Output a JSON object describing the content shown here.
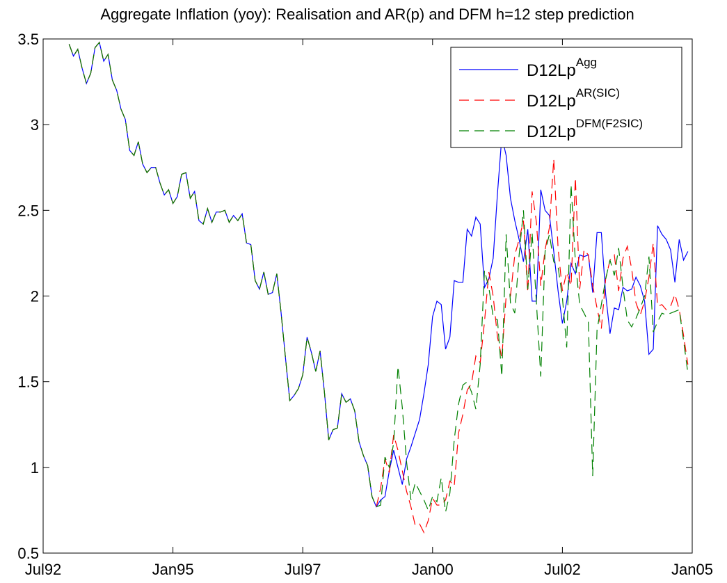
{
  "chart_data": {
    "type": "line",
    "title": "Aggregate Inflation (yoy): Realisation and AR(p) and DFM h=12 step prediction",
    "x": [
      "Jan93",
      "Feb93",
      "Mar93",
      "Apr93",
      "May93",
      "Jun93",
      "Jul93",
      "Aug93",
      "Sep93",
      "Oct93",
      "Nov93",
      "Dec93",
      "Jan94",
      "Feb94",
      "Mar94",
      "Apr94",
      "May94",
      "Jun94",
      "Jul94",
      "Aug94",
      "Sep94",
      "Oct94",
      "Nov94",
      "Dec94",
      "Jan95",
      "Feb95",
      "Mar95",
      "Apr95",
      "May95",
      "Jun95",
      "Jul95",
      "Aug95",
      "Sep95",
      "Oct95",
      "Nov95",
      "Dec95",
      "Jan96",
      "Feb96",
      "Mar96",
      "Apr96",
      "May96",
      "Jun96",
      "Jul96",
      "Aug96",
      "Sep96",
      "Oct96",
      "Nov96",
      "Dec96",
      "Jan97",
      "Feb97",
      "Mar97",
      "Apr97",
      "May97",
      "Jun97",
      "Jul97",
      "Aug97",
      "Sep97",
      "Oct97",
      "Nov97",
      "Dec97",
      "Jan98",
      "Feb98",
      "Mar98",
      "Apr98",
      "May98",
      "Jun98",
      "Jul98",
      "Aug98",
      "Sep98",
      "Oct98",
      "Nov98",
      "Dec98",
      "Jan99",
      "Feb99",
      "Mar99",
      "Apr99",
      "May99",
      "Jun99",
      "Jul99",
      "Aug99",
      "Sep99",
      "Oct99",
      "Nov99",
      "Dec99",
      "Jan00",
      "Feb00",
      "Mar00",
      "Apr00",
      "May00",
      "Jun00",
      "Jul00",
      "Aug00",
      "Sep00",
      "Oct00",
      "Nov00",
      "Dec00",
      "Jan01",
      "Feb01",
      "Mar01",
      "Apr01",
      "May01",
      "Jun01",
      "Jul01",
      "Aug01",
      "Sep01",
      "Oct01",
      "Nov01",
      "Dec01",
      "Jan02",
      "Feb02",
      "Mar02",
      "Apr02",
      "May02",
      "Jun02",
      "Jul02",
      "Aug02",
      "Sep02",
      "Oct02",
      "Nov02",
      "Dec02",
      "Jan03",
      "Feb03",
      "Mar03",
      "Apr03",
      "May03",
      "Jun03",
      "Jul03",
      "Aug03",
      "Sep03",
      "Oct03",
      "Nov03",
      "Dec03",
      "Jan04",
      "Feb04",
      "Mar04",
      "Apr04",
      "May04",
      "Jun04",
      "Jul04",
      "Aug04",
      "Sep04",
      "Oct04",
      "Nov04",
      "Dec04"
    ],
    "series": [
      {
        "name": "D12Lp",
        "superscript": "Agg",
        "color": "#0000ff",
        "dash": "solid",
        "values": [
          3.47,
          3.4,
          3.44,
          3.33,
          3.24,
          3.3,
          3.45,
          3.48,
          3.37,
          3.41,
          3.26,
          3.2,
          3.09,
          3.03,
          2.85,
          2.82,
          2.9,
          2.77,
          2.72,
          2.75,
          2.75,
          2.66,
          2.59,
          2.62,
          2.54,
          2.58,
          2.71,
          2.72,
          2.57,
          2.61,
          2.44,
          2.42,
          2.51,
          2.43,
          2.49,
          2.49,
          2.5,
          2.43,
          2.47,
          2.44,
          2.48,
          2.31,
          2.3,
          2.09,
          2.04,
          2.14,
          2.01,
          2.02,
          2.13,
          1.9,
          1.64,
          1.39,
          1.42,
          1.46,
          1.54,
          1.76,
          1.67,
          1.56,
          1.68,
          1.44,
          1.16,
          1.22,
          1.23,
          1.43,
          1.38,
          1.4,
          1.33,
          1.15,
          1.07,
          1.01,
          0.83,
          0.77,
          0.81,
          0.83,
          0.98,
          1.1,
          1.0,
          0.9,
          1.05,
          1.12,
          1.2,
          1.28,
          1.43,
          1.6,
          1.88,
          1.97,
          1.95,
          1.69,
          1.76,
          2.09,
          2.08,
          2.08,
          2.39,
          2.35,
          2.46,
          2.42,
          2.05,
          2.1,
          2.22,
          2.6,
          2.93,
          2.82,
          2.57,
          2.44,
          2.33,
          2.2,
          2.39,
          1.97,
          1.97,
          2.62,
          2.5,
          2.47,
          2.26,
          2.03,
          1.84,
          1.97,
          2.19,
          2.13,
          2.24,
          2.23,
          2.24,
          2.02,
          2.37,
          2.37,
          2.01,
          1.78,
          1.93,
          1.92,
          2.05,
          2.03,
          2.04,
          2.11,
          2.06,
          1.97,
          1.66,
          1.69,
          2.41,
          2.36,
          2.33,
          2.27,
          2.08,
          2.33,
          2.21,
          2.26
        ]
      },
      {
        "name": "D12Lp",
        "superscript": "AR(SIC)",
        "color": "#ff0000",
        "dash": "dashed",
        "values": [
          3.47,
          3.4,
          3.44,
          3.33,
          3.24,
          3.3,
          3.45,
          3.48,
          3.37,
          3.41,
          3.26,
          3.2,
          3.09,
          3.03,
          2.85,
          2.82,
          2.9,
          2.77,
          2.72,
          2.75,
          2.75,
          2.66,
          2.59,
          2.62,
          2.54,
          2.58,
          2.71,
          2.72,
          2.57,
          2.61,
          2.44,
          2.42,
          2.51,
          2.43,
          2.49,
          2.49,
          2.5,
          2.43,
          2.47,
          2.44,
          2.48,
          2.31,
          2.3,
          2.09,
          2.04,
          2.14,
          2.01,
          2.02,
          2.13,
          1.9,
          1.64,
          1.39,
          1.42,
          1.46,
          1.54,
          1.76,
          1.67,
          1.56,
          1.68,
          1.44,
          1.16,
          1.22,
          1.23,
          1.43,
          1.38,
          1.4,
          1.33,
          1.15,
          1.07,
          1.01,
          0.83,
          0.77,
          0.88,
          1.05,
          0.97,
          1.19,
          1.1,
          0.98,
          0.86,
          0.77,
          0.66,
          0.67,
          0.62,
          0.69,
          0.82,
          0.78,
          0.78,
          0.81,
          0.92,
          0.89,
          1.2,
          1.31,
          1.45,
          1.49,
          1.65,
          1.61,
          1.85,
          2.14,
          2.0,
          1.76,
          1.64,
          2.0,
          2.0,
          2.24,
          2.33,
          2.44,
          2.02,
          2.61,
          2.43,
          2.06,
          2.27,
          2.4,
          2.8,
          2.28,
          2.03,
          2.14,
          2.06,
          2.69,
          2.04,
          2.27,
          2.24,
          2.06,
          1.93,
          1.81,
          2.1,
          2.21,
          2.24,
          2.03,
          2.22,
          2.29,
          2.16,
          1.96,
          1.89,
          1.97,
          2.11,
          2.31,
          1.94,
          1.95,
          1.92,
          1.94,
          2.01,
          1.92,
          1.77,
          1.6
        ]
      },
      {
        "name": "D12Lp",
        "superscript": "DFM(F2SIC)",
        "color": "#008000",
        "dash": "dashed",
        "values": [
          3.47,
          3.4,
          3.44,
          3.33,
          3.24,
          3.3,
          3.45,
          3.48,
          3.37,
          3.41,
          3.26,
          3.2,
          3.09,
          3.03,
          2.85,
          2.82,
          2.9,
          2.77,
          2.72,
          2.75,
          2.75,
          2.66,
          2.59,
          2.62,
          2.54,
          2.58,
          2.71,
          2.72,
          2.57,
          2.61,
          2.44,
          2.42,
          2.51,
          2.43,
          2.49,
          2.49,
          2.5,
          2.43,
          2.47,
          2.44,
          2.48,
          2.31,
          2.3,
          2.09,
          2.04,
          2.14,
          2.01,
          2.02,
          2.13,
          1.9,
          1.64,
          1.39,
          1.42,
          1.46,
          1.54,
          1.76,
          1.67,
          1.56,
          1.68,
          1.44,
          1.16,
          1.22,
          1.23,
          1.43,
          1.38,
          1.4,
          1.33,
          1.15,
          1.07,
          1.01,
          0.83,
          0.77,
          0.78,
          1.06,
          1.0,
          1.14,
          1.59,
          1.35,
          1.03,
          0.81,
          0.91,
          0.86,
          0.81,
          0.75,
          0.83,
          0.8,
          0.94,
          0.74,
          0.85,
          1.16,
          1.37,
          1.48,
          1.5,
          1.44,
          1.34,
          1.6,
          2.15,
          2.05,
          1.88,
          1.86,
          1.53,
          2.36,
          1.96,
          1.9,
          2.24,
          2.5,
          2.04,
          2.37,
          1.96,
          1.53,
          2.26,
          2.36,
          2.2,
          2.17,
          1.99,
          1.7,
          2.65,
          2.2,
          1.95,
          1.9,
          1.85,
          0.95,
          1.8,
          1.95,
          2.1,
          2.21,
          2.12,
          2.28,
          2.05,
          1.86,
          1.82,
          1.87,
          1.93,
          2.0,
          2.23,
          1.79,
          1.85,
          1.9,
          1.89,
          1.9,
          1.91,
          1.92,
          1.74,
          1.55
        ]
      }
    ],
    "xlim": [
      "Jul92",
      "Jan05"
    ],
    "xticks": [
      "Jul92",
      "Jan95",
      "Jul97",
      "Jan00",
      "Jul02",
      "Jan05"
    ],
    "ylim": [
      0.5,
      3.5
    ],
    "yticks": [
      0.5,
      1,
      1.5,
      2,
      2.5,
      3,
      3.5
    ],
    "grid": false,
    "legend": "northeast"
  }
}
